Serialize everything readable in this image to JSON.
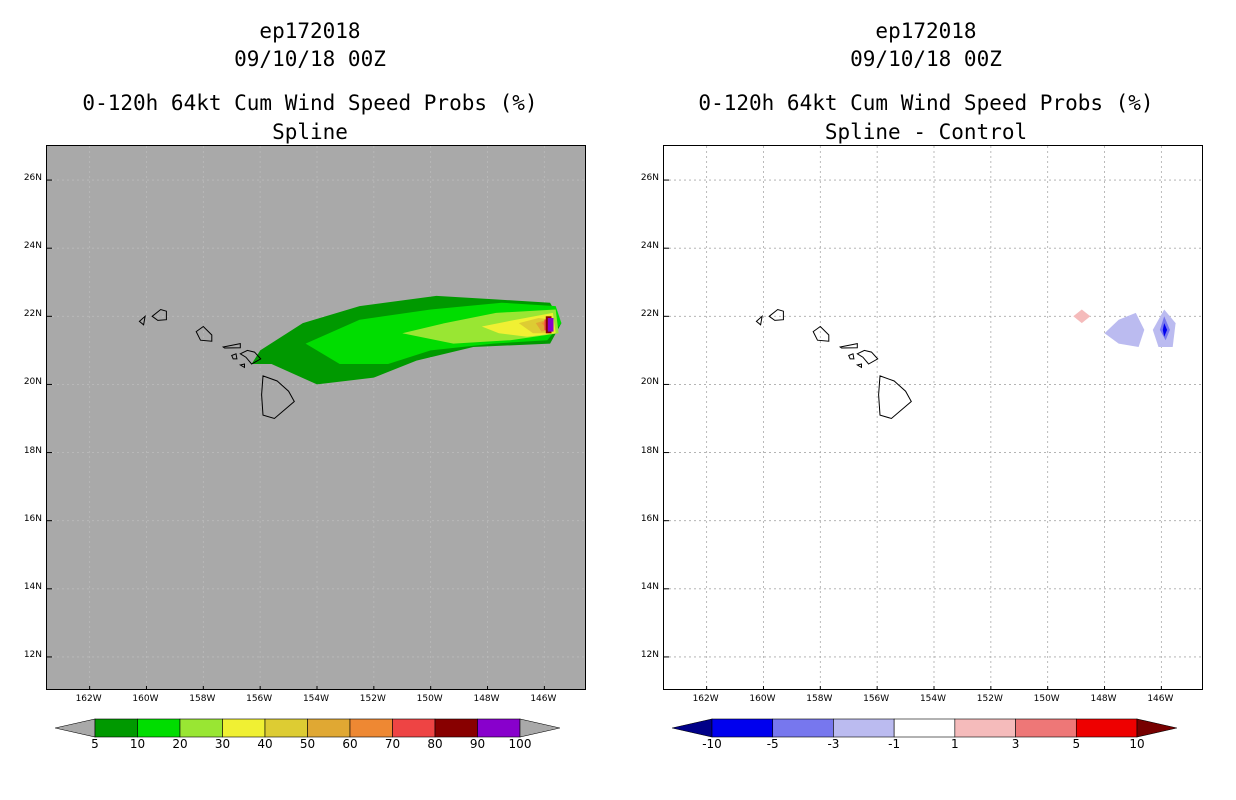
{
  "left_panel": {
    "storm_id": "ep172018",
    "datetime": "09/10/18 00Z",
    "title": "0-120h 64kt Cum Wind Speed Probs (%)",
    "subtitle": "Spline",
    "background_color": "#a9a9a9",
    "colorbar": {
      "labels": [
        "5",
        "10",
        "20",
        "30",
        "40",
        "50",
        "60",
        "70",
        "80",
        "90",
        "100"
      ],
      "colors": [
        "#009900",
        "#00dd00",
        "#99e633",
        "#f0f033",
        "#ddcc33",
        "#e0a833",
        "#ee8833",
        "#ee4444",
        "#880000",
        "#8800cc"
      ],
      "under_color": "#a9a9a9",
      "over_color": "#a9a9a9"
    }
  },
  "right_panel": {
    "storm_id": "ep172018",
    "datetime": "09/10/18 00Z",
    "title": "0-120h 64kt Cum Wind Speed Probs (%)",
    "subtitle": "Spline - Control",
    "colorbar": {
      "labels": [
        "-10",
        "-5",
        "-3",
        "-1",
        "1",
        "3",
        "5",
        "10"
      ],
      "colors": [
        "#0000ee",
        "#7777ee",
        "#bbbbf0",
        "#ffffff",
        "#f5bbbb",
        "#ee7777",
        "#ee0000"
      ],
      "under_color": "#000088",
      "over_color": "#770000"
    }
  },
  "axes": {
    "lat_labels": [
      "26N",
      "24N",
      "22N",
      "20N",
      "18N",
      "16N",
      "14N",
      "12N"
    ],
    "lon_labels": [
      "162W",
      "160W",
      "158W",
      "156W",
      "154W",
      "152W",
      "150W",
      "148W",
      "146W"
    ]
  },
  "chart_data": [
    {
      "type": "heatmap",
      "title": "0-120h 64kt Cum Wind Speed Probs (%) - Spline",
      "region": {
        "lon_range": [
          -163.5,
          -144.5
        ],
        "lat_range": [
          11.0,
          27.0
        ]
      },
      "contour_levels": [
        5,
        10,
        20,
        30,
        40,
        50,
        60,
        70,
        80,
        90,
        100
      ],
      "max_location": {
        "lon": -145.8,
        "lat": 21.8
      },
      "fields": [
        {
          "level": 5,
          "polygon": [
            [
              -156.3,
              20.6
            ],
            [
              -156.0,
              21.0
            ],
            [
              -154.5,
              21.8
            ],
            [
              -152.5,
              22.3
            ],
            [
              -149.8,
              22.6
            ],
            [
              -147.8,
              22.5
            ],
            [
              -145.8,
              22.4
            ],
            [
              -145.4,
              21.8
            ],
            [
              -145.8,
              21.2
            ],
            [
              -148.5,
              21.1
            ],
            [
              -150.5,
              20.7
            ],
            [
              -152.0,
              20.2
            ],
            [
              -154.0,
              20.0
            ],
            [
              -155.6,
              20.6
            ]
          ]
        },
        {
          "level": 10,
          "polygon": [
            [
              -154.4,
              21.2
            ],
            [
              -152.5,
              21.9
            ],
            [
              -150.0,
              22.2
            ],
            [
              -147.5,
              22.4
            ],
            [
              -145.6,
              22.3
            ],
            [
              -145.4,
              21.8
            ],
            [
              -145.9,
              21.3
            ],
            [
              -147.8,
              21.2
            ],
            [
              -150.0,
              21.0
            ],
            [
              -151.5,
              20.6
            ],
            [
              -153.2,
              20.6
            ]
          ]
        },
        {
          "level": 20,
          "polygon": [
            [
              -151.0,
              21.5
            ],
            [
              -149.5,
              21.8
            ],
            [
              -147.7,
              22.1
            ],
            [
              -145.6,
              22.2
            ],
            [
              -145.5,
              21.5
            ],
            [
              -147.2,
              21.3
            ],
            [
              -149.2,
              21.2
            ]
          ]
        },
        {
          "level": 30,
          "polygon": [
            [
              -148.2,
              21.7
            ],
            [
              -147.0,
              21.9
            ],
            [
              -145.7,
              22.1
            ],
            [
              -145.6,
              21.5
            ],
            [
              -146.6,
              21.4
            ],
            [
              -147.6,
              21.5
            ]
          ]
        },
        {
          "level": 40,
          "polygon": [
            [
              -146.9,
              21.8
            ],
            [
              -146.2,
              21.95
            ],
            [
              -145.7,
              21.9
            ],
            [
              -145.8,
              21.5
            ],
            [
              -146.4,
              21.5
            ]
          ]
        },
        {
          "level": 50,
          "polygon": [
            [
              -146.3,
              21.8
            ],
            [
              -145.7,
              21.95
            ],
            [
              -145.7,
              21.6
            ],
            [
              -146.1,
              21.55
            ]
          ]
        },
        {
          "level": 60,
          "polygon": [
            [
              -146.1,
              21.8
            ],
            [
              -145.7,
              21.95
            ],
            [
              -145.8,
              21.55
            ]
          ]
        },
        {
          "level": 70,
          "polygon": [
            [
              -146.0,
              21.9
            ],
            [
              -145.7,
              21.95
            ],
            [
              -145.8,
              21.55
            ],
            [
              -146.0,
              21.6
            ]
          ]
        },
        {
          "level": 80,
          "polygon": [
            [
              -145.95,
              22.0
            ],
            [
              -145.75,
              22.0
            ],
            [
              -145.75,
              21.5
            ],
            [
              -145.95,
              21.5
            ]
          ]
        },
        {
          "level": 90,
          "polygon": [
            [
              -145.88,
              21.95
            ],
            [
              -145.68,
              21.95
            ],
            [
              -145.68,
              21.55
            ],
            [
              -145.88,
              21.55
            ]
          ]
        }
      ]
    },
    {
      "type": "heatmap",
      "title": "0-120h 64kt Cum Wind Speed Probs (%) - Spline - Control",
      "region": {
        "lon_range": [
          -163.5,
          -144.5
        ],
        "lat_range": [
          11.0,
          27.0
        ]
      },
      "contour_levels": [
        -10,
        -5,
        -3,
        -1,
        1,
        3,
        5,
        10
      ],
      "fields": [
        {
          "level": 1,
          "polygon": [
            [
              -149.1,
              22.0
            ],
            [
              -148.8,
              22.2
            ],
            [
              -148.5,
              22.0
            ],
            [
              -148.8,
              21.8
            ]
          ]
        },
        {
          "level": -1,
          "polygon": [
            [
              -148.0,
              21.5
            ],
            [
              -147.5,
              21.9
            ],
            [
              -146.9,
              22.1
            ],
            [
              -146.6,
              21.6
            ],
            [
              -146.8,
              21.1
            ],
            [
              -147.5,
              21.2
            ]
          ]
        },
        {
          "level": -1,
          "polygon": [
            [
              -146.3,
              21.6
            ],
            [
              -145.9,
              22.2
            ],
            [
              -145.5,
              21.8
            ],
            [
              -145.6,
              21.1
            ],
            [
              -146.1,
              21.1
            ]
          ]
        },
        {
          "level": -3,
          "polygon": [
            [
              -146.05,
              21.6
            ],
            [
              -145.9,
              22.0
            ],
            [
              -145.7,
              21.6
            ],
            [
              -145.85,
              21.3
            ]
          ]
        },
        {
          "level": -5,
          "polygon": [
            [
              -145.95,
              21.6
            ],
            [
              -145.9,
              21.8
            ],
            [
              -145.8,
              21.6
            ],
            [
              -145.9,
              21.4
            ]
          ]
        }
      ]
    }
  ],
  "map_features": {
    "islands": [
      {
        "name": "Niihau",
        "polygon": [
          [
            -160.25,
            21.85
          ],
          [
            -160.05,
            22.0
          ],
          [
            -160.1,
            21.75
          ]
        ]
      },
      {
        "name": "Kauai",
        "polygon": [
          [
            -159.8,
            22.0
          ],
          [
            -159.5,
            22.2
          ],
          [
            -159.3,
            22.15
          ],
          [
            -159.3,
            21.9
          ],
          [
            -159.6,
            21.88
          ]
        ]
      },
      {
        "name": "Oahu",
        "polygon": [
          [
            -158.25,
            21.55
          ],
          [
            -158.0,
            21.7
          ],
          [
            -157.7,
            21.45
          ],
          [
            -157.7,
            21.27
          ],
          [
            -158.1,
            21.3
          ]
        ]
      },
      {
        "name": "Molokai",
        "polygon": [
          [
            -157.3,
            21.1
          ],
          [
            -156.7,
            21.2
          ],
          [
            -156.7,
            21.08
          ],
          [
            -157.25,
            21.07
          ]
        ]
      },
      {
        "name": "Lanai",
        "polygon": [
          [
            -157.0,
            20.85
          ],
          [
            -156.85,
            20.9
          ],
          [
            -156.82,
            20.75
          ],
          [
            -156.95,
            20.75
          ]
        ]
      },
      {
        "name": "Maui",
        "polygon": [
          [
            -156.7,
            20.9
          ],
          [
            -156.45,
            21.0
          ],
          [
            -156.2,
            20.95
          ],
          [
            -155.98,
            20.75
          ],
          [
            -156.3,
            20.6
          ],
          [
            -156.5,
            20.8
          ]
        ]
      },
      {
        "name": "Kahoolawe",
        "polygon": [
          [
            -156.7,
            20.57
          ],
          [
            -156.55,
            20.6
          ],
          [
            -156.55,
            20.5
          ]
        ]
      },
      {
        "name": "Hawaii",
        "polygon": [
          [
            -155.9,
            20.25
          ],
          [
            -155.4,
            20.1
          ],
          [
            -155.0,
            19.8
          ],
          [
            -154.8,
            19.5
          ],
          [
            -155.5,
            19.0
          ],
          [
            -155.9,
            19.1
          ],
          [
            -155.95,
            19.7
          ]
        ]
      }
    ]
  }
}
